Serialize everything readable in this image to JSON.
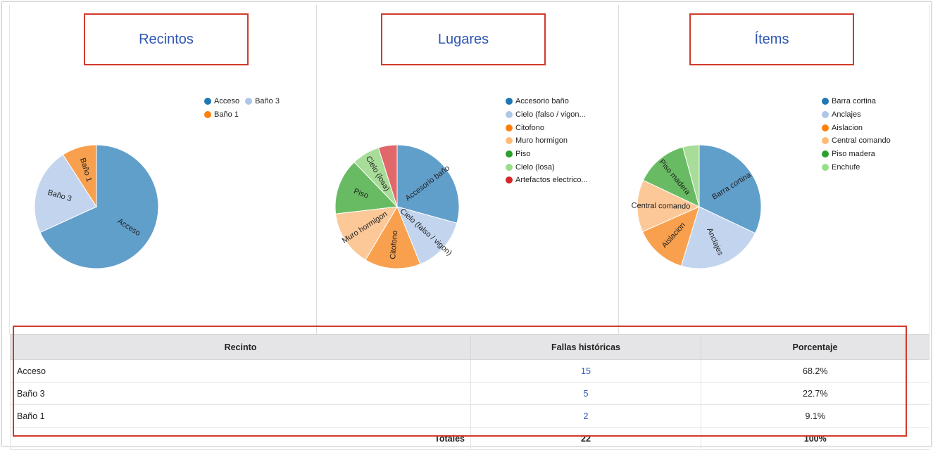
{
  "panels": {
    "recintos": {
      "title": "Recintos"
    },
    "lugares": {
      "title": "Lugares"
    },
    "items": {
      "title": "Ítems"
    }
  },
  "chart_data": [
    {
      "type": "pie",
      "title": "Recintos",
      "legend": "right",
      "slices": [
        {
          "label": "Acceso",
          "legend": "Acceso",
          "value": 15,
          "color": "#619fcb"
        },
        {
          "label": "Baño 3",
          "legend": "Baño 3",
          "value": 5,
          "color": "#c3d5ee"
        },
        {
          "label": "Baño 1",
          "legend": "Baño 1",
          "value": 2,
          "color": "#f8a04d"
        }
      ]
    },
    {
      "type": "pie",
      "title": "Lugares",
      "legend": "right",
      "slices": [
        {
          "label": "Accesorio baño",
          "legend": "Accesorio baño",
          "value": 6,
          "color": "#619fcb"
        },
        {
          "label": "Cielo (falso / vigon)",
          "legend": "Cielo (falso / vigon...",
          "value": 3,
          "color": "#c3d5ee"
        },
        {
          "label": "Citofono",
          "legend": "Citofono",
          "value": 3,
          "color": "#f8a04d"
        },
        {
          "label": "Muro hormigon",
          "legend": "Muro hormigon",
          "value": 3,
          "color": "#fcc898"
        },
        {
          "label": "Piso",
          "legend": "Piso",
          "value": 3,
          "color": "#68bb62"
        },
        {
          "label": "Cielo (losa)",
          "legend": "Cielo (losa)",
          "value": 1.5,
          "color": "#a8dd99"
        },
        {
          "label": "",
          "legend": "Artefactos electrico...",
          "value": 1,
          "color": "#e0676a"
        }
      ]
    },
    {
      "type": "pie",
      "title": "Ítems",
      "legend": "right",
      "slices": [
        {
          "label": "Barra cortina",
          "legend": "Barra cortina",
          "value": 7.5,
          "color": "#619fcb"
        },
        {
          "label": "Anclajes",
          "legend": "Anclajes",
          "value": 5.3,
          "color": "#c3d5ee"
        },
        {
          "label": "Aislacion",
          "legend": "Aislacion",
          "value": 3.2,
          "color": "#f8a04d"
        },
        {
          "label": "Central comando",
          "legend": "Central comando",
          "value": 3.2,
          "color": "#fcc898"
        },
        {
          "label": "Piso madera",
          "legend": "Piso madera",
          "value": 3.2,
          "color": "#68bb62"
        },
        {
          "label": "",
          "legend": "Enchufe",
          "value": 1,
          "color": "#a8dd99"
        }
      ]
    }
  ],
  "legend_colors": {
    "recintos": [
      "#1f77b4",
      "#aec7e8",
      "#ff7f0e"
    ],
    "lugares": [
      "#1f77b4",
      "#aec7e8",
      "#ff7f0e",
      "#ffbb78",
      "#2ca02c",
      "#98df8a",
      "#d62728"
    ],
    "items": [
      "#1f77b4",
      "#aec7e8",
      "#ff7f0e",
      "#ffbb78",
      "#2ca02c",
      "#98df8a"
    ]
  },
  "table": {
    "headers": [
      "Recinto",
      "Fallas históricas",
      "Porcentaje"
    ],
    "rows": [
      {
        "recinto": "Acceso",
        "fallas": "15",
        "porcentaje": "68.2%"
      },
      {
        "recinto": "Baño 3",
        "fallas": "5",
        "porcentaje": "22.7%"
      },
      {
        "recinto": "Baño 1",
        "fallas": "2",
        "porcentaje": "9.1%"
      }
    ],
    "totals": {
      "label": "Totales",
      "fallas": "22",
      "porcentaje": "100%"
    }
  }
}
